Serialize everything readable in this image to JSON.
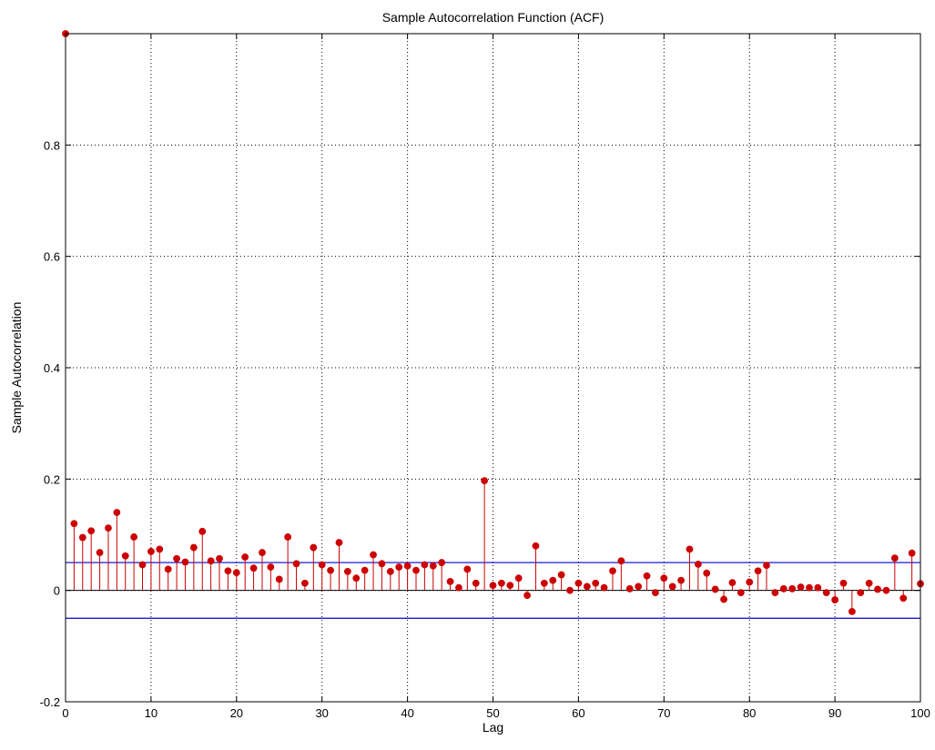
{
  "chart_data": {
    "type": "stem",
    "title": "Sample Autocorrelation Function (ACF)",
    "xlabel": "Lag",
    "ylabel": "Sample Autocorrelation",
    "xlim": [
      0,
      100
    ],
    "ylim": [
      -0.2,
      1
    ],
    "xticks": [
      0,
      10,
      20,
      30,
      40,
      50,
      60,
      70,
      80,
      90,
      100
    ],
    "yticks": [
      -0.2,
      0,
      0.2,
      0.4,
      0.6,
      0.8
    ],
    "ytick_labels": [
      "-0.2",
      "0",
      "0.2",
      "0.4",
      "0.6",
      "0.8"
    ],
    "grid": true,
    "bounds": {
      "upper": 0.05,
      "lower": -0.05
    },
    "x": [
      0,
      1,
      2,
      3,
      4,
      5,
      6,
      7,
      8,
      9,
      10,
      11,
      12,
      13,
      14,
      15,
      16,
      17,
      18,
      19,
      20,
      21,
      22,
      23,
      24,
      25,
      26,
      27,
      28,
      29,
      30,
      31,
      32,
      33,
      34,
      35,
      36,
      37,
      38,
      39,
      40,
      41,
      42,
      43,
      44,
      45,
      46,
      47,
      48,
      49,
      50,
      51,
      52,
      53,
      54,
      55,
      56,
      57,
      58,
      59,
      60,
      61,
      62,
      63,
      64,
      65,
      66,
      67,
      68,
      69,
      70,
      71,
      72,
      73,
      74,
      75,
      76,
      77,
      78,
      79,
      80,
      81,
      82,
      83,
      84,
      85,
      86,
      87,
      88,
      89,
      90,
      91,
      92,
      93,
      94,
      95,
      96,
      97,
      98,
      99,
      100
    ],
    "values": [
      1.0,
      0.12,
      0.095,
      0.107,
      0.068,
      0.112,
      0.14,
      0.062,
      0.096,
      0.046,
      0.07,
      0.074,
      0.038,
      0.057,
      0.051,
      0.077,
      0.106,
      0.053,
      0.057,
      0.035,
      0.032,
      0.06,
      0.04,
      0.068,
      0.042,
      0.02,
      0.096,
      0.048,
      0.013,
      0.077,
      0.046,
      0.036,
      0.086,
      0.034,
      0.022,
      0.036,
      0.064,
      0.048,
      0.034,
      0.042,
      0.044,
      0.036,
      0.046,
      0.044,
      0.05,
      0.016,
      0.005,
      0.038,
      0.013,
      0.197,
      0.009,
      0.013,
      0.009,
      0.022,
      -0.009,
      0.08,
      0.013,
      0.018,
      0.028,
      0.0,
      0.013,
      0.007,
      0.013,
      0.005,
      0.035,
      0.053,
      0.003,
      0.007,
      0.026,
      -0.004,
      0.022,
      0.007,
      0.018,
      0.074,
      0.047,
      0.031,
      0.002,
      -0.016,
      0.014,
      -0.004,
      0.015,
      0.035,
      0.045,
      -0.004,
      0.003,
      0.003,
      0.006,
      0.005,
      0.005,
      -0.004,
      -0.017,
      0.013,
      -0.038,
      -0.004,
      0.013,
      0.002,
      0.0,
      0.058,
      -0.014,
      0.067,
      0.012
    ],
    "colors": {
      "stem": "#cc0000",
      "marker": "#cc0000",
      "bounds": "#0000cc",
      "axes": "#000000",
      "grid": "#000000",
      "background": "#ffffff"
    }
  }
}
